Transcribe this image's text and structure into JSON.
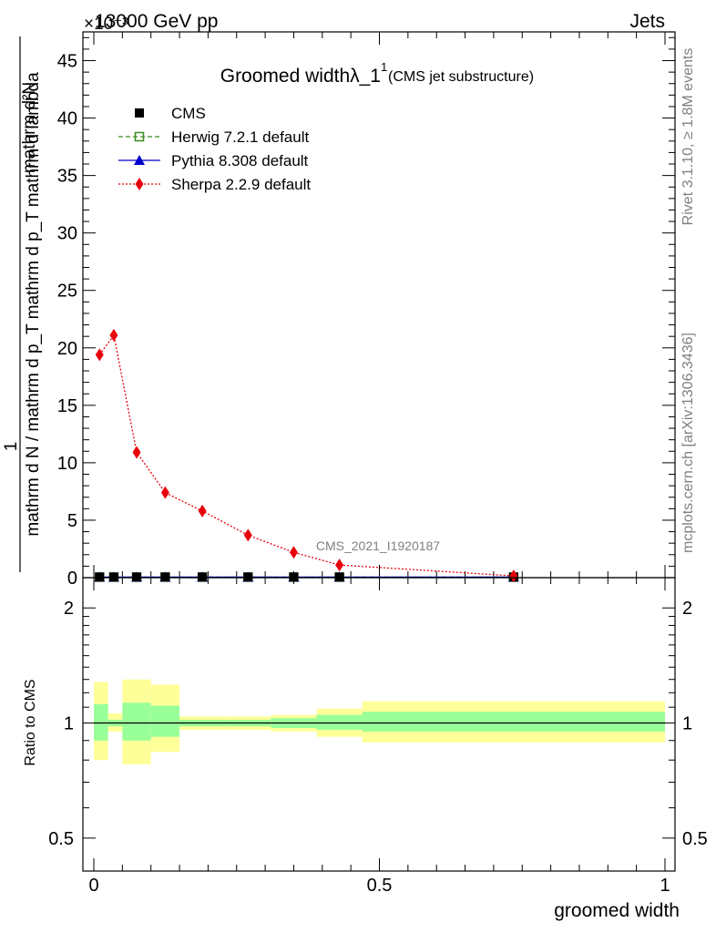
{
  "header": {
    "left": "13000 GeV pp",
    "right": "Jets",
    "exponent": "×10⁻³"
  },
  "side": {
    "rivet": "Rivet 3.1.10, ≥ 1.8M events",
    "mcplots": "mcplots.cern.ch [arXiv:1306.3436]"
  },
  "watermark": "CMS_2021_I1920187",
  "chart_data": [
    {
      "type": "line",
      "title_main": "Groomed widthλ_1",
      "title_sup": "1",
      "title_sub": "(CMS jet substructure)",
      "ylabel_numerator": "1",
      "ylabel_denominator": "mathrm d N / mathrm d p_T mathrm d p_T mathrm d lambda",
      "ylabel_top": "mathrm d²N",
      "xlim": [
        0,
        1
      ],
      "ylim": [
        0,
        47.5
      ],
      "y_ticks": [
        {
          "v": 0,
          "label": "0"
        },
        {
          "v": 5,
          "label": "5"
        },
        {
          "v": 10,
          "label": "10"
        },
        {
          "v": 15,
          "label": "15"
        },
        {
          "v": 20,
          "label": "20"
        },
        {
          "v": 25,
          "label": "25"
        },
        {
          "v": 30,
          "label": "30"
        },
        {
          "v": 35,
          "label": "35"
        },
        {
          "v": 40,
          "label": "40"
        },
        {
          "v": 45,
          "label": "45"
        }
      ],
      "legend": [
        {
          "name": "CMS",
          "color": "#000000",
          "marker": "square-filled",
          "line": "none"
        },
        {
          "name": "Herwig 7.2.1 default",
          "color": "#3a8c1e",
          "marker": "square-open",
          "line": "dashed"
        },
        {
          "name": "Pythia 8.308 default",
          "color": "#0000cc",
          "marker": "triangle",
          "line": "solid"
        },
        {
          "name": "Sherpa 2.2.9 default",
          "color": "#e8000b",
          "marker": "diamond",
          "line": "dotted"
        }
      ],
      "series": [
        {
          "name": "CMS",
          "x": [
            0.01,
            0.035,
            0.075,
            0.125,
            0.19,
            0.27,
            0.35,
            0.43,
            0.735
          ],
          "y": [
            0.05,
            0.05,
            0.05,
            0.05,
            0.05,
            0.05,
            0.05,
            0.05,
            0.05
          ]
        },
        {
          "name": "Herwig 7.2.1 default",
          "x": [
            0.01,
            0.035,
            0.075,
            0.125,
            0.19,
            0.27,
            0.35,
            0.43,
            0.735
          ],
          "y": [
            0.05,
            0.05,
            0.05,
            0.05,
            0.05,
            0.05,
            0.05,
            0.05,
            0.05
          ]
        },
        {
          "name": "Pythia 8.308 default",
          "x": [
            0.01,
            0.035,
            0.075,
            0.125,
            0.19,
            0.27,
            0.35,
            0.43,
            0.735
          ],
          "y": [
            0.05,
            0.05,
            0.05,
            0.05,
            0.05,
            0.05,
            0.05,
            0.05,
            0.05
          ]
        },
        {
          "name": "Sherpa 2.2.9 default",
          "x": [
            0.01,
            0.035,
            0.075,
            0.125,
            0.19,
            0.27,
            0.35,
            0.43,
            0.735
          ],
          "y": [
            19.4,
            21.1,
            10.9,
            7.4,
            5.8,
            3.7,
            2.2,
            1.1,
            0.15
          ]
        }
      ]
    },
    {
      "type": "area",
      "ylabel": "Ratio to CMS",
      "xlabel": "groomed width",
      "xlim": [
        0,
        1
      ],
      "ylim": [
        0.41,
        2.4
      ],
      "y_scale": "log",
      "y_ticks": [
        {
          "v": 0.5,
          "label": "0.5"
        },
        {
          "v": 1,
          "label": "1"
        },
        {
          "v": 2,
          "label": "2"
        }
      ],
      "x_ticks": [
        {
          "v": 0,
          "label": "0"
        },
        {
          "v": 0.5,
          "label": "0.5"
        },
        {
          "v": 1,
          "label": "1"
        }
      ],
      "bands": [
        {
          "x0": 0.0,
          "x1": 0.025,
          "stat": [
            0.9,
            1.12
          ],
          "total": [
            0.8,
            1.28
          ]
        },
        {
          "x0": 0.025,
          "x1": 0.05,
          "stat": [
            0.98,
            1.02
          ],
          "total": [
            0.95,
            1.06
          ]
        },
        {
          "x0": 0.05,
          "x1": 0.1,
          "stat": [
            0.9,
            1.13
          ],
          "total": [
            0.78,
            1.3
          ]
        },
        {
          "x0": 0.1,
          "x1": 0.15,
          "stat": [
            0.92,
            1.11
          ],
          "total": [
            0.84,
            1.26
          ]
        },
        {
          "x0": 0.15,
          "x1": 0.23,
          "stat": [
            0.98,
            1.02
          ],
          "total": [
            0.96,
            1.04
          ]
        },
        {
          "x0": 0.23,
          "x1": 0.31,
          "stat": [
            0.98,
            1.02
          ],
          "total": [
            0.96,
            1.04
          ]
        },
        {
          "x0": 0.31,
          "x1": 0.39,
          "stat": [
            0.97,
            1.03
          ],
          "total": [
            0.95,
            1.05
          ]
        },
        {
          "x0": 0.39,
          "x1": 0.47,
          "stat": [
            0.96,
            1.05
          ],
          "total": [
            0.92,
            1.09
          ]
        },
        {
          "x0": 0.47,
          "x1": 1.0,
          "stat": [
            0.95,
            1.07
          ],
          "total": [
            0.89,
            1.14
          ]
        }
      ],
      "colors": {
        "stat": "#99ff99",
        "total": "#ffff99"
      }
    }
  ]
}
